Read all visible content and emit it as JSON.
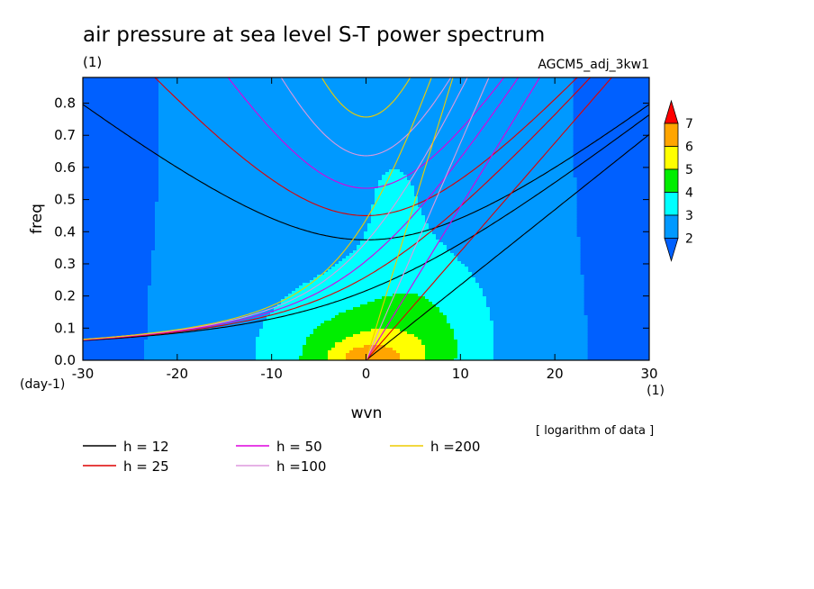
{
  "chart_data": {
    "type": "heatmap",
    "title": "air pressure at sea level S-T power spectrum",
    "title_unit": "(1)",
    "dataset": "AGCM5_adj_3kw1",
    "xlabel": "wvn",
    "x_unit": "(1)",
    "ylabel": "freq",
    "y_unit": "(day-1)",
    "xlim": [
      -30,
      30
    ],
    "ylim": [
      0,
      0.88
    ],
    "xticks": [
      -30,
      -20,
      -10,
      0,
      10,
      20,
      30
    ],
    "xtick_labels": [
      "-30",
      "-20",
      "-10",
      "0",
      "10",
      "20",
      "30"
    ],
    "yticks": [
      0,
      0.1,
      0.2,
      0.3,
      0.4,
      0.5,
      0.6,
      0.7,
      0.8
    ],
    "ytick_labels": [
      "0.0",
      "0.1",
      "0.2",
      "0.3",
      "0.4",
      "0.5",
      "0.6",
      "0.7",
      "0.8"
    ],
    "note": "[ logarithm of data ]",
    "colorbar": {
      "levels": [
        2,
        3,
        4,
        5,
        6,
        7
      ],
      "labels": [
        "2",
        "3",
        "4",
        "5",
        "6",
        "7"
      ],
      "colors": [
        "#0060ff",
        "#0099ff",
        "#00ffff",
        "#00ee00",
        "#ffff00",
        "#ffa500",
        "#ff0000"
      ]
    },
    "contour_fill": {
      "log_power_at_origin": 7.2,
      "log_power_high_freq_edges": 2.0,
      "log_power_low_freq_edges": 2.0
    },
    "dispersion_curves": [
      {
        "label": "h = 12",
        "equivalent_depth_m": 12,
        "color": "#000000"
      },
      {
        "label": "h = 25",
        "equivalent_depth_m": 25,
        "color": "#dd0000"
      },
      {
        "label": "h = 50",
        "equivalent_depth_m": 50,
        "color": "#dd00dd"
      },
      {
        "label": "h =100",
        "equivalent_depth_m": 100,
        "color": "#dd99dd"
      },
      {
        "label": "h =200",
        "equivalent_depth_m": 200,
        "color": "#eecc00"
      }
    ]
  }
}
